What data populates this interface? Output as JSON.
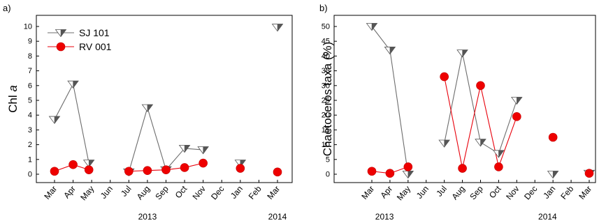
{
  "chart_data": [
    {
      "panel": "a)",
      "type": "line",
      "ylabel": "Chl a",
      "ylabel_main": "Chl ",
      "ylabel_italic": "a",
      "ylim": [
        0,
        10
      ],
      "y_ticks": [
        0,
        1,
        2,
        3,
        4,
        5,
        6,
        7,
        8,
        9,
        10
      ],
      "x_ticks": [
        "Mar",
        "Apr",
        "May",
        "Jun",
        "Jul",
        "Aug",
        "Sep",
        "Oct",
        "Nov",
        "Dec",
        "Jan",
        "Feb",
        "Mar"
      ],
      "year_labels": [
        {
          "text": "2013",
          "at_month": 5
        },
        {
          "text": "2014",
          "at_month": 12
        }
      ],
      "legend": {
        "placement": "top-left"
      },
      "series": [
        {
          "name": "SJ 101",
          "marker": "half-triangle-down",
          "color": "#808080",
          "points": [
            {
              "m": 0,
              "v": 3.7
            },
            {
              "m": 1,
              "v": 6.1
            },
            {
              "m": 1.85,
              "v": 0.75
            },
            {
              "m": 4,
              "v": 0.15
            },
            {
              "m": 5,
              "v": 4.5
            },
            {
              "m": 6,
              "v": 0.3
            },
            {
              "m": 7,
              "v": 1.75
            },
            {
              "m": 8,
              "v": 1.65
            },
            {
              "m": 10,
              "v": 0.75
            },
            {
              "m": 12,
              "v": 9.95
            }
          ],
          "segments": [
            [
              0,
              1,
              2
            ],
            [
              3,
              4,
              5,
              6,
              7
            ],
            [
              8
            ],
            [
              9
            ]
          ]
        },
        {
          "name": "RV 001",
          "marker": "circle",
          "color": "#e8000b",
          "points": [
            {
              "m": 0,
              "v": 0.2
            },
            {
              "m": 1,
              "v": 0.65
            },
            {
              "m": 1.85,
              "v": 0.3
            },
            {
              "m": 4,
              "v": 0.2
            },
            {
              "m": 5,
              "v": 0.25
            },
            {
              "m": 6,
              "v": 0.3
            },
            {
              "m": 7,
              "v": 0.45
            },
            {
              "m": 8,
              "v": 0.75
            },
            {
              "m": 10,
              "v": 0.4
            },
            {
              "m": 12,
              "v": 0.15
            }
          ],
          "segments": [
            [
              0,
              1,
              2
            ],
            [
              3,
              4,
              5,
              6,
              7
            ],
            [
              8
            ],
            [
              9
            ]
          ]
        }
      ]
    },
    {
      "panel": "b)",
      "type": "line",
      "ylabel": "Chaetoceros taxa (%)",
      "ylim": [
        0,
        50
      ],
      "y_ticks": [
        0,
        5,
        10,
        15,
        20,
        25,
        30,
        35,
        40,
        45,
        50
      ],
      "x_ticks": [
        "Mar",
        "Apr",
        "May",
        "Jun",
        "Jul",
        "Aug",
        "Sep",
        "Oct",
        "Nov",
        "Dec",
        "Jan",
        "Feb",
        "Mar"
      ],
      "year_labels": [
        {
          "text": "2013",
          "at_month": 0.7
        },
        {
          "text": "2014",
          "at_month": 9.7
        }
      ],
      "series": [
        {
          "name": "SJ 101",
          "marker": "half-triangle-down",
          "color": "#808080",
          "points": [
            {
              "m": 0,
              "v": 50
            },
            {
              "m": 1,
              "v": 42
            },
            {
              "m": 2,
              "v": 0
            },
            {
              "m": 4,
              "v": 10.5
            },
            {
              "m": 5,
              "v": 41
            },
            {
              "m": 6,
              "v": 10.8
            },
            {
              "m": 7,
              "v": 7
            },
            {
              "m": 8,
              "v": 25
            },
            {
              "m": 10,
              "v": 0
            },
            {
              "m": 12,
              "v": 0.3
            }
          ],
          "segments": [
            [
              0,
              1,
              2
            ],
            [
              3,
              4,
              5,
              6,
              7
            ],
            [
              8
            ],
            [
              9
            ]
          ]
        },
        {
          "name": "RV 001",
          "marker": "circle",
          "color": "#e8000b",
          "points": [
            {
              "m": 0,
              "v": 1
            },
            {
              "m": 1,
              "v": 0.3
            },
            {
              "m": 2,
              "v": 2.5
            },
            {
              "m": 4,
              "v": 33
            },
            {
              "m": 5,
              "v": 2
            },
            {
              "m": 6,
              "v": 30
            },
            {
              "m": 7,
              "v": 2.5
            },
            {
              "m": 8,
              "v": 19.5
            },
            {
              "m": 10,
              "v": 12.5
            },
            {
              "m": 12,
              "v": 0.3
            }
          ],
          "segments": [
            [
              0,
              1
            ],
            [
              1,
              2
            ],
            [
              3,
              4,
              5,
              6,
              7
            ],
            [
              8
            ],
            [
              9
            ]
          ]
        }
      ]
    }
  ]
}
